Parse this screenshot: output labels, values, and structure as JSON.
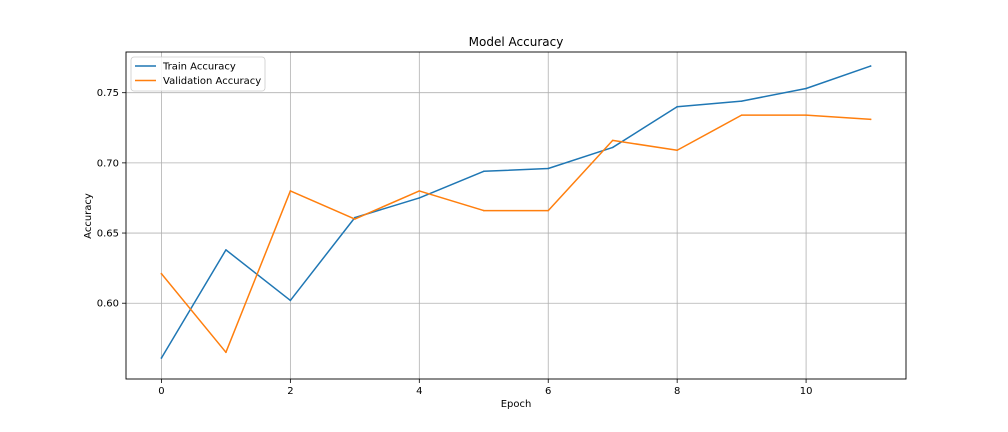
{
  "chart_data": {
    "type": "line",
    "title": "Model Accuracy",
    "xlabel": "Epoch",
    "ylabel": "Accuracy",
    "xlim": [
      -0.55,
      11.55
    ],
    "ylim": [
      0.546,
      0.779
    ],
    "x_ticks": [
      0,
      2,
      4,
      6,
      8,
      10
    ],
    "y_ticks": [
      0.6,
      0.65,
      0.7,
      0.75
    ],
    "x_tick_labels": [
      "0",
      "2",
      "4",
      "6",
      "8",
      "10"
    ],
    "y_tick_labels": [
      "0.60",
      "0.65",
      "0.70",
      "0.75"
    ],
    "grid": true,
    "legend_position": "top-left",
    "x": [
      0,
      1,
      2,
      3,
      4,
      5,
      6,
      7,
      8,
      9,
      10,
      11
    ],
    "series": [
      {
        "name": "Train Accuracy",
        "color": "#1f77b4",
        "values": [
          0.561,
          0.638,
          0.602,
          0.661,
          0.675,
          0.694,
          0.696,
          0.711,
          0.74,
          0.744,
          0.753,
          0.769
        ]
      },
      {
        "name": "Validation Accuracy",
        "color": "#ff7f0e",
        "values": [
          0.621,
          0.565,
          0.68,
          0.66,
          0.68,
          0.666,
          0.666,
          0.716,
          0.709,
          0.734,
          0.734,
          0.731
        ]
      }
    ]
  }
}
